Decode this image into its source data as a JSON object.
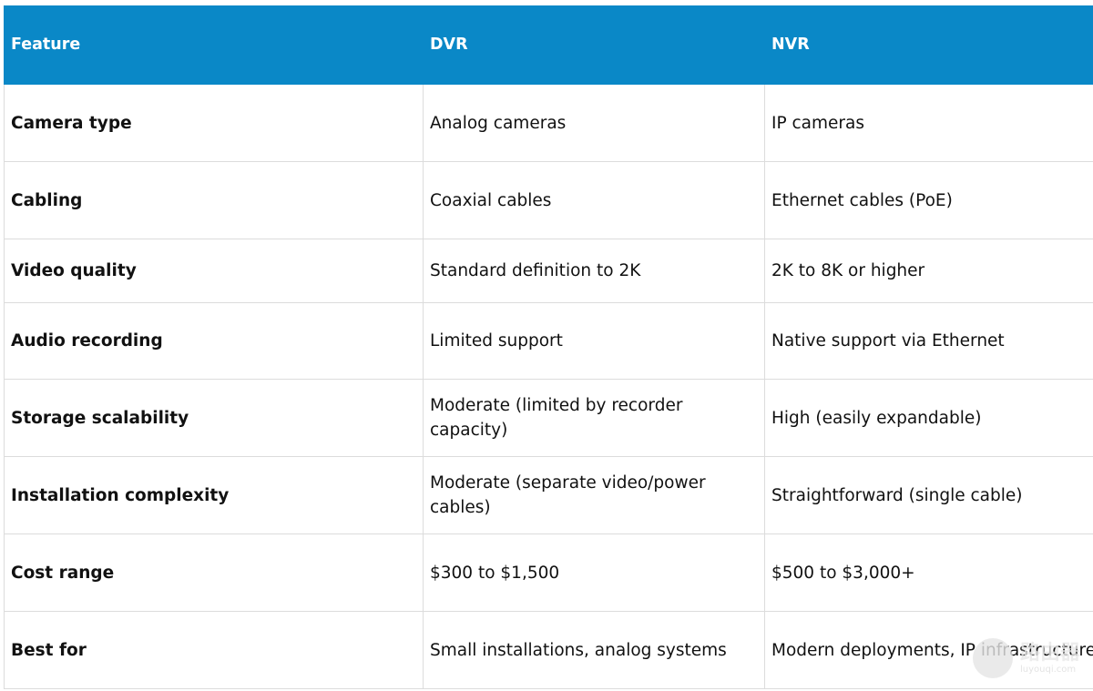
{
  "table": {
    "header": [
      "Feature",
      "DVR",
      "NVR"
    ],
    "rows": [
      [
        "Camera type",
        "Analog cameras",
        "IP cameras"
      ],
      [
        "Cabling",
        "Coaxial cables",
        "Ethernet cables (PoE)"
      ],
      [
        "Video quality",
        "Standard definition to 2K",
        "2K to 8K or higher"
      ],
      [
        "Audio recording",
        "Limited support",
        "Native support via Ethernet"
      ],
      [
        "Storage scalability",
        "Moderate (limited by recorder capacity)",
        "High (easily expandable)"
      ],
      [
        "Installation complexity",
        "Moderate (separate video/power cables)",
        "Straightforward (single cable)"
      ],
      [
        "Cost range",
        "$300 to $1,500",
        "$500 to $3,000+"
      ],
      [
        "Best for",
        "Small installations, analog systems",
        "Modern deployments, IP infrastructure"
      ]
    ]
  },
  "watermark": {
    "text": "路由器",
    "url": "luyouqi.com"
  }
}
